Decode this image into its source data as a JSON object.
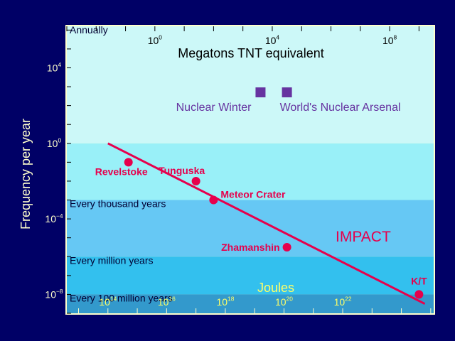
{
  "chart_data": {
    "type": "line",
    "title": "",
    "ylabel": "Frequency per year",
    "xlabel_top": "Megatons TNT equivalent",
    "xlabel_bottom": "Joules",
    "y_axis": {
      "scale": "log",
      "range_exp": [
        -9.0,
        6.2
      ],
      "ticks_exp": [
        4,
        0,
        -4,
        -8
      ]
    },
    "top_axis": {
      "scale": "log",
      "range_exp": [
        -3.0,
        9.5
      ],
      "ticks_exp": [
        0,
        4,
        8
      ]
    },
    "bottom_axis": {
      "scale": "log",
      "range_exp": [
        12.6,
        25.1
      ],
      "ticks_exp": [
        14,
        16,
        18,
        20,
        22
      ]
    },
    "bands": [
      {
        "label": "Annually",
        "from_exp": 0,
        "to_exp": 6.2,
        "color": "#ccf8f8"
      },
      {
        "label": "",
        "from_exp": -3,
        "to_exp": 0,
        "color": "#99f0f8"
      },
      {
        "label": "Every thousand years",
        "from_exp": -6,
        "to_exp": -3,
        "color": "#66c8f4"
      },
      {
        "label": "Every million years",
        "from_exp": -8,
        "to_exp": -6,
        "color": "#33c0ee"
      },
      {
        "label": "Every 100 million years",
        "from_exp": -9,
        "to_exp": -8,
        "color": "#3399cc"
      }
    ],
    "series": [
      {
        "name": "IMPACT",
        "color": "#e6004c",
        "line": [
          {
            "x_exp": 14.0,
            "y_exp": 0.0
          },
          {
            "x_exp": 24.8,
            "y_exp": -8.5
          }
        ],
        "points": [
          {
            "label": "Revelstoke",
            "x_exp": 14.7,
            "y_exp": -1.0
          },
          {
            "label": "Tunguska",
            "x_exp": 17.0,
            "y_exp": -2.0
          },
          {
            "label": "Meteor Crater",
            "x_exp": 17.6,
            "y_exp": -3.0
          },
          {
            "label": "Zhamanshin",
            "x_exp": 20.1,
            "y_exp": -5.5
          },
          {
            "label": "K/T",
            "x_exp": 24.6,
            "y_exp": -8.0
          }
        ]
      }
    ],
    "reference_markers": [
      {
        "label": "Nuclear Winter",
        "megatons_exp": 3.6,
        "color": "#6633a0"
      },
      {
        "label": "World's Nuclear Arsenal",
        "megatons_exp": 4.5,
        "color": "#6633a0"
      }
    ],
    "grid": false,
    "legend": "none"
  }
}
